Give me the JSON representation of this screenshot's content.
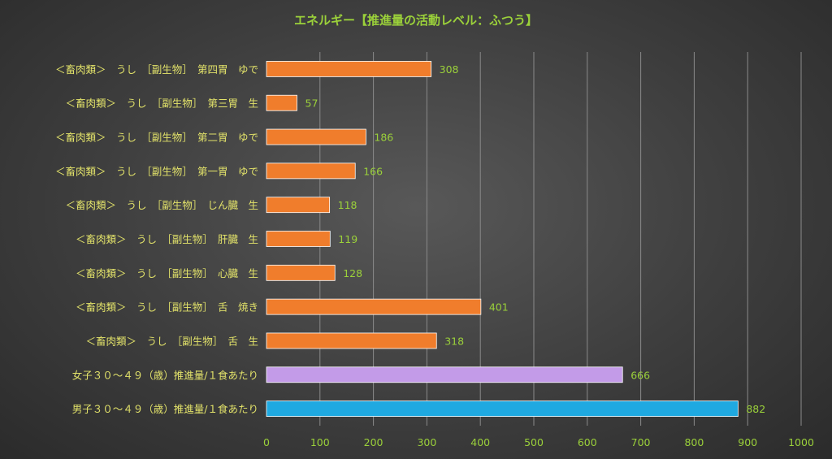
{
  "chart_data": {
    "type": "bar",
    "orientation": "horizontal",
    "title": "エネルギー【推進量の活動レベル：ふつう】",
    "categories": [
      "＜畜肉類＞　うし　［副生物］　第四胃　ゆで",
      "＜畜肉類＞　うし　［副生物］　第三胃　生",
      "＜畜肉類＞　うし　［副生物］　第二胃　ゆで",
      "＜畜肉類＞　うし　［副生物］　第一胃　ゆで",
      "＜畜肉類＞　うし　［副生物］　じん臓　生",
      "＜畜肉類＞　うし　［副生物］　肝臓　生",
      "＜畜肉類＞　うし　［副生物］　心臓　生",
      "＜畜肉類＞　うし　［副生物］　舌　焼き",
      "＜畜肉類＞　うし　［副生物］　舌　生",
      "女子３０～４９（歳）推進量/１食あたり",
      "男子３０～４９（歳）推進量/１食あたり"
    ],
    "values": [
      308,
      57,
      186,
      166,
      118,
      119,
      128,
      401,
      318,
      666,
      882
    ],
    "colors": [
      "#f07d2c",
      "#f07d2c",
      "#f07d2c",
      "#f07d2c",
      "#f07d2c",
      "#f07d2c",
      "#f07d2c",
      "#f07d2c",
      "#f07d2c",
      "#c39be8",
      "#1fa9e1"
    ],
    "xlim": [
      0,
      1000
    ],
    "xticks": [
      "0",
      "100",
      "200",
      "300",
      "400",
      "500",
      "600",
      "700",
      "800",
      "900",
      "1000"
    ],
    "xlabel": "",
    "ylabel": "",
    "grid": "vertical",
    "legend": "none"
  }
}
